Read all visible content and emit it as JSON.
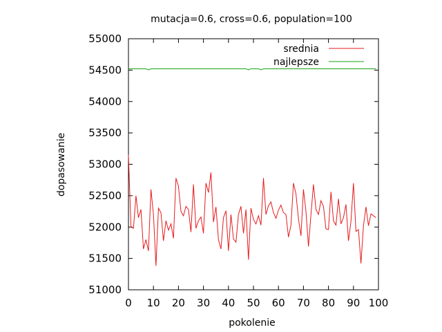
{
  "chart_data": {
    "type": "line",
    "title": "mutacja=0.6, cross=0.6, population=100",
    "xlabel": "pokolenie",
    "ylabel": "dopasowanie",
    "xlim": [
      0,
      100
    ],
    "ylim": [
      51000,
      55000
    ],
    "xticks": [
      "0",
      "10",
      "20",
      "30",
      "40",
      "50",
      "60",
      "70",
      "80",
      "90",
      "100"
    ],
    "yticks": [
      "51000",
      "51500",
      "52000",
      "52500",
      "53000",
      "53500",
      "54000",
      "54500",
      "55000"
    ],
    "grid": false,
    "legend_position": "top-right",
    "x": [
      0,
      1,
      2,
      3,
      4,
      5,
      6,
      7,
      8,
      9,
      10,
      11,
      12,
      13,
      14,
      15,
      16,
      17,
      18,
      19,
      20,
      21,
      22,
      23,
      24,
      25,
      26,
      27,
      28,
      29,
      30,
      31,
      32,
      33,
      34,
      35,
      36,
      37,
      38,
      39,
      40,
      41,
      42,
      43,
      44,
      45,
      46,
      47,
      48,
      49,
      50,
      51,
      52,
      53,
      54,
      55,
      56,
      57,
      58,
      59,
      60,
      61,
      62,
      63,
      64,
      65,
      66,
      67,
      68,
      69,
      70,
      71,
      72,
      73,
      74,
      75,
      76,
      77,
      78,
      79,
      80,
      81,
      82,
      83,
      84,
      85,
      86,
      87,
      88,
      89,
      90,
      91,
      92,
      93,
      94,
      95,
      96,
      97,
      98,
      99
    ],
    "series": [
      {
        "name": "srednia",
        "color": "#e41a1c",
        "values": [
          53150,
          52000,
          51980,
          52500,
          52150,
          52280,
          51650,
          51800,
          51620,
          52600,
          52200,
          51380,
          52300,
          52230,
          51780,
          52100,
          51950,
          52050,
          51820,
          52780,
          52650,
          52250,
          52180,
          52330,
          52280,
          51920,
          52680,
          51980,
          52100,
          52160,
          51900,
          52700,
          52550,
          52870,
          52080,
          52320,
          51800,
          51650,
          52150,
          52260,
          51620,
          52200,
          51810,
          51760,
          52200,
          52330,
          51900,
          52280,
          51480,
          52300,
          52120,
          52050,
          52180,
          52030,
          52780,
          52200,
          52340,
          52400,
          52230,
          52140,
          52270,
          52350,
          52230,
          52200,
          51840,
          52030,
          52700,
          52530,
          52130,
          51860,
          52600,
          52250,
          51690,
          52200,
          52680,
          52280,
          52200,
          52420,
          52330,
          51970,
          51960,
          52560,
          52100,
          52030,
          52450,
          52050,
          52150,
          52360,
          51780,
          52090,
          52700,
          51930,
          51960,
          51420,
          52020,
          52320,
          52020,
          52210,
          52180,
          52150
        ]
      },
      {
        "name": "najlepsze",
        "color": "#17a317",
        "values": [
          54520,
          54520,
          54520,
          54520,
          54520,
          54520,
          54520,
          54520,
          54505,
          54520,
          54520,
          54520,
          54520,
          54520,
          54520,
          54520,
          54520,
          54520,
          54520,
          54520,
          54520,
          54520,
          54520,
          54520,
          54520,
          54520,
          54520,
          54520,
          54520,
          54520,
          54520,
          54520,
          54520,
          54520,
          54520,
          54520,
          54520,
          54520,
          54520,
          54520,
          54520,
          54520,
          54520,
          54520,
          54520,
          54520,
          54520,
          54520,
          54505,
          54520,
          54520,
          54520,
          54520,
          54505,
          54520,
          54520,
          54520,
          54520,
          54520,
          54520,
          54520,
          54520,
          54520,
          54520,
          54520,
          54520,
          54520,
          54520,
          54520,
          54520,
          54520,
          54520,
          54520,
          54520,
          54520,
          54520,
          54520,
          54520,
          54520,
          54520,
          54520,
          54520,
          54520,
          54520,
          54520,
          54520,
          54520,
          54520,
          54520,
          54520,
          54520,
          54520,
          54520,
          54520,
          54520,
          54520,
          54520,
          54520,
          54520,
          54520
        ]
      }
    ]
  }
}
